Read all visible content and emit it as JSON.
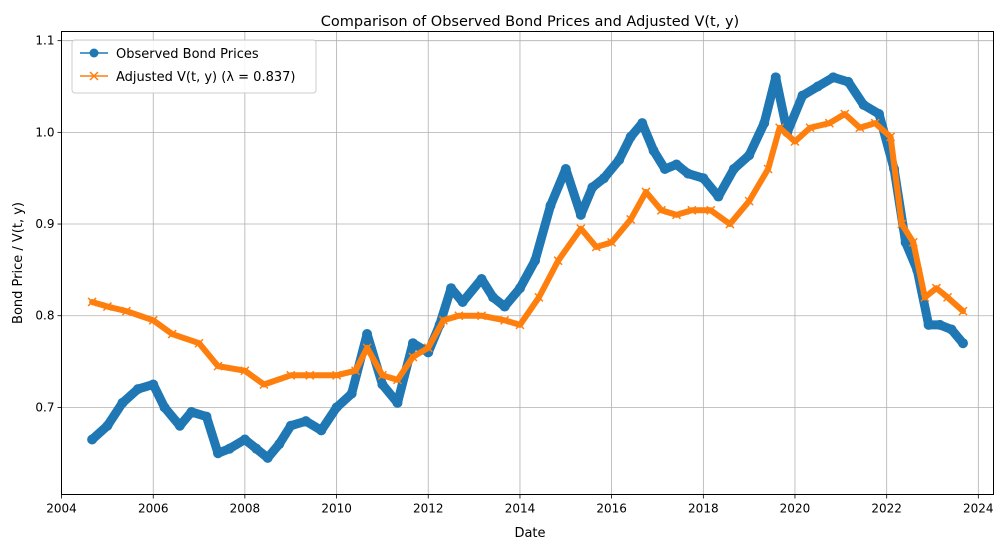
{
  "chart_data": {
    "type": "line",
    "title": "Comparison of Observed Bond Prices and Adjusted V(t, y)",
    "xlabel": "Date",
    "ylabel": "Bond Price / V(t, y)",
    "xlim": [
      "2004-01-01",
      "2024-05-01"
    ],
    "ylim": [
      0.605,
      1.11
    ],
    "x_ticks": [
      "2004",
      "2006",
      "2008",
      "2010",
      "2012",
      "2014",
      "2016",
      "2018",
      "2020",
      "2022",
      "2024"
    ],
    "y_ticks": [
      "0.7",
      "0.8",
      "0.9",
      "1.0",
      "1.1"
    ],
    "grid": true,
    "legend_position": "upper-left",
    "series": [
      {
        "name": "Observed Bond Prices",
        "color": "#1f77b4",
        "marker": "circle",
        "x": [
          "2004-09-01",
          "2005-01-01",
          "2005-05-01",
          "2005-09-01",
          "2006-01-01",
          "2006-04-01",
          "2006-08-01",
          "2006-11-01",
          "2007-03-01",
          "2007-06-01",
          "2007-09-01",
          "2008-01-01",
          "2008-04-01",
          "2008-07-01",
          "2008-10-01",
          "2009-01-01",
          "2009-05-01",
          "2009-09-01",
          "2010-01-01",
          "2010-05-01",
          "2010-09-01",
          "2011-01-01",
          "2011-05-01",
          "2011-09-01",
          "2012-01-01",
          "2012-04-01",
          "2012-07-01",
          "2012-10-01",
          "2013-03-01",
          "2013-06-01",
          "2013-09-01",
          "2014-01-01",
          "2014-05-01",
          "2014-09-01",
          "2015-01-01",
          "2015-05-01",
          "2015-08-01",
          "2015-11-01",
          "2016-03-01",
          "2016-06-01",
          "2016-09-01",
          "2016-12-01",
          "2017-03-01",
          "2017-06-01",
          "2017-09-01",
          "2018-01-01",
          "2018-05-01",
          "2018-09-01",
          "2019-01-01",
          "2019-05-01",
          "2019-08-01",
          "2019-11-01",
          "2020-03-01",
          "2020-07-01",
          "2020-11-01",
          "2021-03-01",
          "2021-07-01",
          "2021-11-01",
          "2022-03-01",
          "2022-06-01",
          "2022-09-01",
          "2022-12-01",
          "2023-03-01",
          "2023-06-01",
          "2023-09-01"
        ],
        "y": [
          0.665,
          0.68,
          0.705,
          0.72,
          0.725,
          0.7,
          0.68,
          0.695,
          0.69,
          0.65,
          0.655,
          0.665,
          0.655,
          0.645,
          0.66,
          0.68,
          0.685,
          0.675,
          0.7,
          0.715,
          0.78,
          0.725,
          0.705,
          0.77,
          0.76,
          0.79,
          0.83,
          0.815,
          0.84,
          0.82,
          0.81,
          0.83,
          0.86,
          0.92,
          0.96,
          0.91,
          0.94,
          0.95,
          0.97,
          0.995,
          1.01,
          0.98,
          0.96,
          0.965,
          0.955,
          0.95,
          0.93,
          0.96,
          0.975,
          1.01,
          1.06,
          1.0,
          1.04,
          1.05,
          1.06,
          1.055,
          1.03,
          1.02,
          0.96,
          0.88,
          0.85,
          0.79,
          0.79,
          0.785,
          0.77
        ]
      },
      {
        "name": "Adjusted V(t, y) (λ = 0.837)",
        "color": "#ff7f0e",
        "marker": "x",
        "x": [
          "2004-09-01",
          "2005-01-01",
          "2005-06-01",
          "2006-01-01",
          "2006-06-01",
          "2007-01-01",
          "2007-06-01",
          "2008-01-01",
          "2008-06-01",
          "2009-01-01",
          "2009-06-01",
          "2010-01-01",
          "2010-06-01",
          "2010-09-01",
          "2011-01-01",
          "2011-05-01",
          "2011-09-01",
          "2012-01-01",
          "2012-05-01",
          "2012-09-01",
          "2013-03-01",
          "2013-09-01",
          "2014-01-01",
          "2014-06-01",
          "2014-11-01",
          "2015-05-01",
          "2015-09-01",
          "2016-01-01",
          "2016-06-01",
          "2016-10-01",
          "2017-02-01",
          "2017-06-01",
          "2017-10-01",
          "2018-03-01",
          "2018-08-01",
          "2019-01-01",
          "2019-06-01",
          "2019-09-01",
          "2020-01-01",
          "2020-05-01",
          "2020-10-01",
          "2021-02-01",
          "2021-06-01",
          "2021-10-01",
          "2022-02-01",
          "2022-05-01",
          "2022-08-01",
          "2022-11-01",
          "2023-02-01",
          "2023-05-01",
          "2023-09-01"
        ],
        "y": [
          0.815,
          0.81,
          0.805,
          0.795,
          0.78,
          0.77,
          0.745,
          0.74,
          0.725,
          0.735,
          0.735,
          0.735,
          0.74,
          0.765,
          0.735,
          0.73,
          0.755,
          0.765,
          0.795,
          0.8,
          0.8,
          0.795,
          0.79,
          0.82,
          0.86,
          0.895,
          0.875,
          0.88,
          0.905,
          0.935,
          0.915,
          0.91,
          0.915,
          0.915,
          0.9,
          0.925,
          0.96,
          1.005,
          0.99,
          1.005,
          1.01,
          1.02,
          1.005,
          1.01,
          0.995,
          0.9,
          0.88,
          0.82,
          0.83,
          0.82,
          0.805
        ]
      }
    ]
  }
}
